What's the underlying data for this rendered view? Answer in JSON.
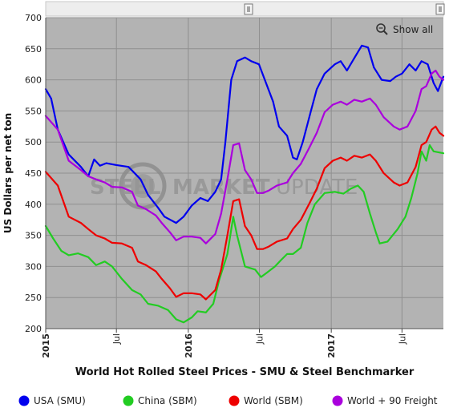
{
  "chart_data": {
    "type": "line",
    "title": "World Hot Rolled Steel Prices - SMU & Steel Benchmarker",
    "ylabel": "US Dollars per net ton",
    "xlabel": "",
    "ylim": [
      200,
      700
    ],
    "yticks": [
      200,
      250,
      300,
      350,
      400,
      450,
      500,
      550,
      600,
      650,
      700
    ],
    "xlim": [
      "2015-01-01",
      "2017-10-15"
    ],
    "xticks": [
      {
        "date": "2015-01-01",
        "label": "2015",
        "year": true
      },
      {
        "date": "2015-07-01",
        "label": "Jul",
        "year": false
      },
      {
        "date": "2016-01-01",
        "label": "2016",
        "year": true
      },
      {
        "date": "2016-07-01",
        "label": "Jul",
        "year": false
      },
      {
        "date": "2017-01-01",
        "label": "2017",
        "year": true
      },
      {
        "date": "2017-07-01",
        "label": "Jul",
        "year": false
      }
    ],
    "grid": true,
    "legend": "bottom",
    "series": [
      {
        "name": "USA (SMU)",
        "color": "#0000ee",
        "points": [
          [
            "2015-01-01",
            585
          ],
          [
            "2015-01-15",
            570
          ],
          [
            "2015-02-01",
            520
          ],
          [
            "2015-03-01",
            480
          ],
          [
            "2015-04-01",
            460
          ],
          [
            "2015-04-20",
            445
          ],
          [
            "2015-05-05",
            472
          ],
          [
            "2015-05-20",
            462
          ],
          [
            "2015-06-05",
            466
          ],
          [
            "2015-07-01",
            463
          ],
          [
            "2015-08-01",
            460
          ],
          [
            "2015-09-01",
            440
          ],
          [
            "2015-09-20",
            415
          ],
          [
            "2015-10-15",
            395
          ],
          [
            "2015-11-01",
            380
          ],
          [
            "2015-12-01",
            370
          ],
          [
            "2015-12-20",
            380
          ],
          [
            "2016-01-10",
            398
          ],
          [
            "2016-02-01",
            410
          ],
          [
            "2016-02-20",
            405
          ],
          [
            "2016-03-10",
            420
          ],
          [
            "2016-03-25",
            440
          ],
          [
            "2016-04-05",
            500
          ],
          [
            "2016-04-20",
            600
          ],
          [
            "2016-05-05",
            630
          ],
          [
            "2016-05-25",
            636
          ],
          [
            "2016-06-10",
            630
          ],
          [
            "2016-06-30",
            625
          ],
          [
            "2016-07-15",
            600
          ],
          [
            "2016-08-05",
            565
          ],
          [
            "2016-08-20",
            525
          ],
          [
            "2016-09-10",
            510
          ],
          [
            "2016-09-25",
            475
          ],
          [
            "2016-10-05",
            472
          ],
          [
            "2016-10-20",
            500
          ],
          [
            "2016-11-10",
            550
          ],
          [
            "2016-11-25",
            585
          ],
          [
            "2016-12-15",
            610
          ],
          [
            "2017-01-10",
            625
          ],
          [
            "2017-01-25",
            630
          ],
          [
            "2017-02-10",
            615
          ],
          [
            "2017-03-01",
            635
          ],
          [
            "2017-03-20",
            655
          ],
          [
            "2017-04-05",
            652
          ],
          [
            "2017-04-20",
            620
          ],
          [
            "2017-05-10",
            600
          ],
          [
            "2017-06-01",
            598
          ],
          [
            "2017-06-15",
            605
          ],
          [
            "2017-07-01",
            610
          ],
          [
            "2017-07-20",
            625
          ],
          [
            "2017-08-05",
            615
          ],
          [
            "2017-08-20",
            630
          ],
          [
            "2017-09-05",
            625
          ],
          [
            "2017-09-20",
            595
          ],
          [
            "2017-10-01",
            582
          ],
          [
            "2017-10-15",
            605
          ]
        ]
      },
      {
        "name": "China (SBM)",
        "color": "#22cc22",
        "points": [
          [
            "2015-01-01",
            365
          ],
          [
            "2015-01-20",
            345
          ],
          [
            "2015-02-10",
            325
          ],
          [
            "2015-03-01",
            318
          ],
          [
            "2015-03-25",
            321
          ],
          [
            "2015-04-20",
            315
          ],
          [
            "2015-05-10",
            302
          ],
          [
            "2015-06-01",
            308
          ],
          [
            "2015-06-20",
            300
          ],
          [
            "2015-07-15",
            280
          ],
          [
            "2015-08-10",
            262
          ],
          [
            "2015-09-01",
            255
          ],
          [
            "2015-09-20",
            240
          ],
          [
            "2015-10-15",
            237
          ],
          [
            "2015-11-10",
            230
          ],
          [
            "2015-12-01",
            215
          ],
          [
            "2015-12-20",
            210
          ],
          [
            "2016-01-10",
            218
          ],
          [
            "2016-01-25",
            228
          ],
          [
            "2016-02-15",
            226
          ],
          [
            "2016-03-05",
            240
          ],
          [
            "2016-03-20",
            278
          ],
          [
            "2016-04-10",
            320
          ],
          [
            "2016-04-25",
            380
          ],
          [
            "2016-05-05",
            350
          ],
          [
            "2016-05-25",
            300
          ],
          [
            "2016-06-20",
            295
          ],
          [
            "2016-07-05",
            283
          ],
          [
            "2016-07-20",
            290
          ],
          [
            "2016-08-10",
            300
          ],
          [
            "2016-08-25",
            310
          ],
          [
            "2016-09-10",
            320
          ],
          [
            "2016-09-25",
            320
          ],
          [
            "2016-10-15",
            330
          ],
          [
            "2016-11-01",
            370
          ],
          [
            "2016-11-20",
            400
          ],
          [
            "2016-12-15",
            418
          ],
          [
            "2017-01-10",
            420
          ],
          [
            "2017-02-01",
            417
          ],
          [
            "2017-02-20",
            425
          ],
          [
            "2017-03-10",
            430
          ],
          [
            "2017-03-25",
            420
          ],
          [
            "2017-04-10",
            385
          ],
          [
            "2017-04-25",
            355
          ],
          [
            "2017-05-05",
            337
          ],
          [
            "2017-05-25",
            340
          ],
          [
            "2017-06-20",
            360
          ],
          [
            "2017-07-10",
            380
          ],
          [
            "2017-07-25",
            410
          ],
          [
            "2017-08-10",
            450
          ],
          [
            "2017-08-20",
            485
          ],
          [
            "2017-09-01",
            470
          ],
          [
            "2017-09-10",
            495
          ],
          [
            "2017-09-20",
            485
          ],
          [
            "2017-10-15",
            482
          ]
        ]
      },
      {
        "name": "World (SBM)",
        "color": "#ee0000",
        "points": [
          [
            "2015-01-01",
            452
          ],
          [
            "2015-02-01",
            430
          ],
          [
            "2015-03-01",
            380
          ],
          [
            "2015-04-01",
            370
          ],
          [
            "2015-04-20",
            360
          ],
          [
            "2015-05-10",
            350
          ],
          [
            "2015-06-01",
            345
          ],
          [
            "2015-06-20",
            338
          ],
          [
            "2015-07-15",
            337
          ],
          [
            "2015-08-10",
            330
          ],
          [
            "2015-08-25",
            308
          ],
          [
            "2015-09-15",
            302
          ],
          [
            "2015-10-10",
            292
          ],
          [
            "2015-10-25",
            280
          ],
          [
            "2015-11-15",
            265
          ],
          [
            "2015-12-01",
            251
          ],
          [
            "2015-12-20",
            257
          ],
          [
            "2016-01-10",
            257
          ],
          [
            "2016-02-01",
            255
          ],
          [
            "2016-02-15",
            247
          ],
          [
            "2016-03-10",
            262
          ],
          [
            "2016-03-25",
            295
          ],
          [
            "2016-04-10",
            350
          ],
          [
            "2016-04-25",
            405
          ],
          [
            "2016-05-10",
            408
          ],
          [
            "2016-05-25",
            365
          ],
          [
            "2016-06-10",
            350
          ],
          [
            "2016-06-25",
            328
          ],
          [
            "2016-07-10",
            328
          ],
          [
            "2016-07-25",
            332
          ],
          [
            "2016-08-15",
            340
          ],
          [
            "2016-09-10",
            345
          ],
          [
            "2016-09-25",
            360
          ],
          [
            "2016-10-15",
            375
          ],
          [
            "2016-11-05",
            400
          ],
          [
            "2016-11-25",
            425
          ],
          [
            "2016-12-15",
            458
          ],
          [
            "2017-01-05",
            470
          ],
          [
            "2017-01-25",
            475
          ],
          [
            "2017-02-10",
            470
          ],
          [
            "2017-03-01",
            478
          ],
          [
            "2017-03-20",
            475
          ],
          [
            "2017-04-10",
            480
          ],
          [
            "2017-04-25",
            470
          ],
          [
            "2017-05-15",
            450
          ],
          [
            "2017-06-10",
            435
          ],
          [
            "2017-06-25",
            430
          ],
          [
            "2017-07-15",
            435
          ],
          [
            "2017-08-05",
            460
          ],
          [
            "2017-08-20",
            495
          ],
          [
            "2017-09-01",
            500
          ],
          [
            "2017-09-15",
            520
          ],
          [
            "2017-09-25",
            525
          ],
          [
            "2017-10-05",
            515
          ],
          [
            "2017-10-15",
            510
          ]
        ]
      },
      {
        "name": "World + 90 Freight",
        "color": "#aa00dd",
        "points": [
          [
            "2015-01-01",
            542
          ],
          [
            "2015-02-01",
            520
          ],
          [
            "2015-03-01",
            470
          ],
          [
            "2015-04-01",
            455
          ],
          [
            "2015-04-20",
            445
          ],
          [
            "2015-05-10",
            440
          ],
          [
            "2015-06-01",
            435
          ],
          [
            "2015-06-20",
            428
          ],
          [
            "2015-07-15",
            427
          ],
          [
            "2015-08-10",
            420
          ],
          [
            "2015-08-25",
            398
          ],
          [
            "2015-09-15",
            392
          ],
          [
            "2015-10-10",
            382
          ],
          [
            "2015-10-25",
            370
          ],
          [
            "2015-11-15",
            355
          ],
          [
            "2015-12-01",
            342
          ],
          [
            "2015-12-20",
            348
          ],
          [
            "2016-01-10",
            348
          ],
          [
            "2016-02-01",
            346
          ],
          [
            "2016-02-15",
            337
          ],
          [
            "2016-03-10",
            352
          ],
          [
            "2016-03-25",
            385
          ],
          [
            "2016-04-10",
            440
          ],
          [
            "2016-04-25",
            495
          ],
          [
            "2016-05-10",
            498
          ],
          [
            "2016-05-25",
            455
          ],
          [
            "2016-06-10",
            440
          ],
          [
            "2016-06-25",
            418
          ],
          [
            "2016-07-10",
            418
          ],
          [
            "2016-07-25",
            422
          ],
          [
            "2016-08-15",
            430
          ],
          [
            "2016-09-10",
            435
          ],
          [
            "2016-09-25",
            450
          ],
          [
            "2016-10-15",
            465
          ],
          [
            "2016-11-05",
            490
          ],
          [
            "2016-11-25",
            515
          ],
          [
            "2016-12-15",
            548
          ],
          [
            "2017-01-05",
            560
          ],
          [
            "2017-01-25",
            565
          ],
          [
            "2017-02-10",
            560
          ],
          [
            "2017-03-01",
            568
          ],
          [
            "2017-03-20",
            565
          ],
          [
            "2017-04-10",
            570
          ],
          [
            "2017-04-25",
            560
          ],
          [
            "2017-05-15",
            540
          ],
          [
            "2017-06-10",
            525
          ],
          [
            "2017-06-25",
            520
          ],
          [
            "2017-07-15",
            525
          ],
          [
            "2017-08-05",
            550
          ],
          [
            "2017-08-20",
            585
          ],
          [
            "2017-09-01",
            590
          ],
          [
            "2017-09-15",
            610
          ],
          [
            "2017-09-25",
            615
          ],
          [
            "2017-10-05",
            605
          ],
          [
            "2017-10-15",
            600
          ]
        ]
      }
    ]
  },
  "ui": {
    "show_all_label": "Show all",
    "watermark_part1": "STEEL",
    "watermark_part2": "MARKET",
    "watermark_part3": "UPDATE",
    "plot_bg": "#b3b3b3",
    "grid_color": "#8f8f8f"
  }
}
